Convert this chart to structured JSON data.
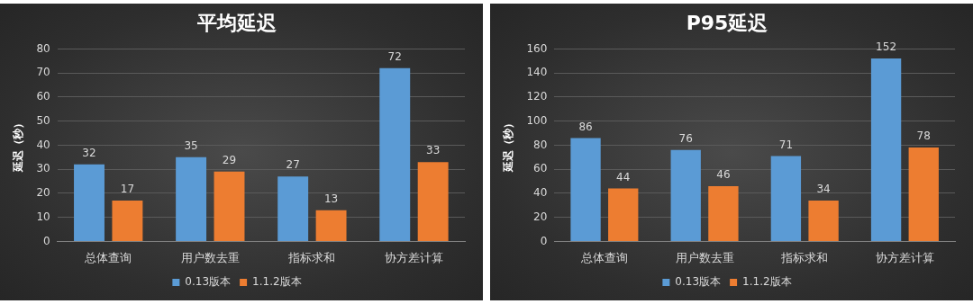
{
  "chart_data": [
    {
      "type": "bar",
      "title": "平均延迟",
      "ylabel": "延迟（秒）",
      "categories": [
        "总体查询",
        "用户数去重",
        "指标求和",
        "协方差计算"
      ],
      "series": [
        {
          "name": "0.13版本",
          "color": "#5b9bd5",
          "values": [
            32,
            35,
            27,
            72
          ]
        },
        {
          "name": "1.1.2版本",
          "color": "#ed7d31",
          "values": [
            17,
            29,
            13,
            33
          ]
        }
      ],
      "ylim": [
        0,
        80
      ],
      "yticks": [
        0,
        10,
        20,
        30,
        40,
        50,
        60,
        70,
        80
      ],
      "grid": "y",
      "legend": "bottom",
      "data_labels": true
    },
    {
      "type": "bar",
      "title": "P95延迟",
      "ylabel": "延迟（秒）",
      "categories": [
        "总体查询",
        "用户数去重",
        "指标求和",
        "协方差计算"
      ],
      "series": [
        {
          "name": "0.13版本",
          "color": "#5b9bd5",
          "values": [
            86,
            76,
            71,
            152
          ]
        },
        {
          "name": "1.1.2版本",
          "color": "#ed7d31",
          "values": [
            44,
            46,
            34,
            78
          ]
        }
      ],
      "ylim": [
        0,
        160
      ],
      "yticks": [
        0,
        20,
        40,
        60,
        80,
        100,
        120,
        140,
        160
      ],
      "grid": "y",
      "legend": "bottom",
      "data_labels": true
    }
  ]
}
